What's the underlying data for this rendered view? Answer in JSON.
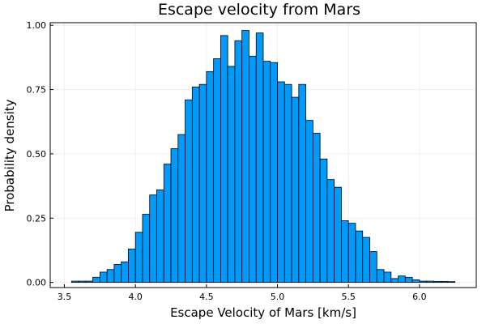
{
  "chart_data": {
    "type": "bar",
    "title": "Escape velocity from Mars",
    "xlabel": "Escape Velocity of Mars [km/s]",
    "ylabel": "Probability density",
    "xlim": [
      3.4,
      6.4
    ],
    "ylim": [
      -0.02,
      1.01
    ],
    "xticks": [
      3.5,
      4.0,
      4.5,
      5.0,
      5.5,
      6.0
    ],
    "xtick_labels": [
      "3.5",
      "4.0",
      "4.5",
      "5.0",
      "5.5",
      "6.0"
    ],
    "yticks": [
      0.0,
      0.25,
      0.5,
      0.75,
      1.0
    ],
    "ytick_labels": [
      "0.00",
      "0.25",
      "0.50",
      "0.75",
      "1.00"
    ],
    "grid": true,
    "legend": "none",
    "bar_color": "#009AFA",
    "bin_width": 0.05,
    "bin_edges_start": 3.55,
    "values": [
      0.005,
      0.005,
      0.005,
      0.02,
      0.04,
      0.05,
      0.07,
      0.08,
      0.13,
      0.195,
      0.265,
      0.34,
      0.36,
      0.46,
      0.52,
      0.575,
      0.71,
      0.76,
      0.77,
      0.82,
      0.87,
      0.96,
      0.84,
      0.94,
      0.98,
      0.88,
      0.97,
      0.86,
      0.855,
      0.78,
      0.77,
      0.72,
      0.77,
      0.63,
      0.58,
      0.48,
      0.4,
      0.37,
      0.24,
      0.23,
      0.2,
      0.175,
      0.12,
      0.05,
      0.04,
      0.015,
      0.025,
      0.02,
      0.01,
      0.005,
      0.005,
      0.004,
      0.004,
      0.003
    ]
  }
}
